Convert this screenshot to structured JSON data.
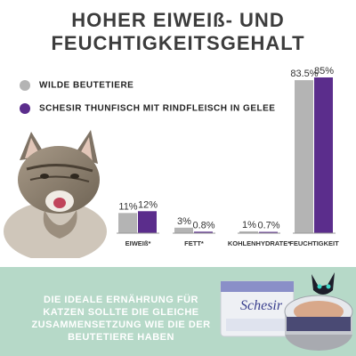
{
  "title": {
    "line1": "HOHER EIWEIß- UND",
    "line2": "FEUCHTIGKEITSGEHALT"
  },
  "legend": [
    {
      "label": "WILDE BEUTETIERE",
      "color": "#b4b4b4"
    },
    {
      "label": "SCHESIR THUNFISCH MIT RINDFLEISCH IN GELEE",
      "color": "#5b2d8c"
    }
  ],
  "chart_data": {
    "type": "bar",
    "categories": [
      "EIWEIß*",
      "FETT*",
      "KOHLENHYDRATE*",
      "FEUCHTIGKEIT"
    ],
    "series": [
      {
        "name": "WILDE BEUTETIERE",
        "values": [
          11,
          3,
          1,
          83.5
        ],
        "labels": [
          "11%",
          "3%",
          "1%",
          "83.5%"
        ],
        "color": "#b4b4b4"
      },
      {
        "name": "SCHESIR THUNFISCH MIT RINDFLEISCH IN GELEE",
        "values": [
          12,
          0.8,
          0.7,
          85
        ],
        "labels": [
          "12%",
          "0.8%",
          "0.7%",
          "85%"
        ],
        "color": "#5b2d8c"
      }
    ],
    "ylim": [
      0,
      85
    ],
    "grid": false
  },
  "bottom": {
    "text": "DIE IDEALE ERNÄHRUNG FÜR KATZEN SOLLTE DIE GLEICHE ZUSAMMENSETZUNG WIE DIE DER BEUTETIERE HABEN"
  },
  "product": {
    "brand": "Schesir"
  },
  "colors": {
    "title": "#3c3c3c",
    "bottom_band": "#b6d9c8",
    "bottom_text": "#ffffff"
  }
}
